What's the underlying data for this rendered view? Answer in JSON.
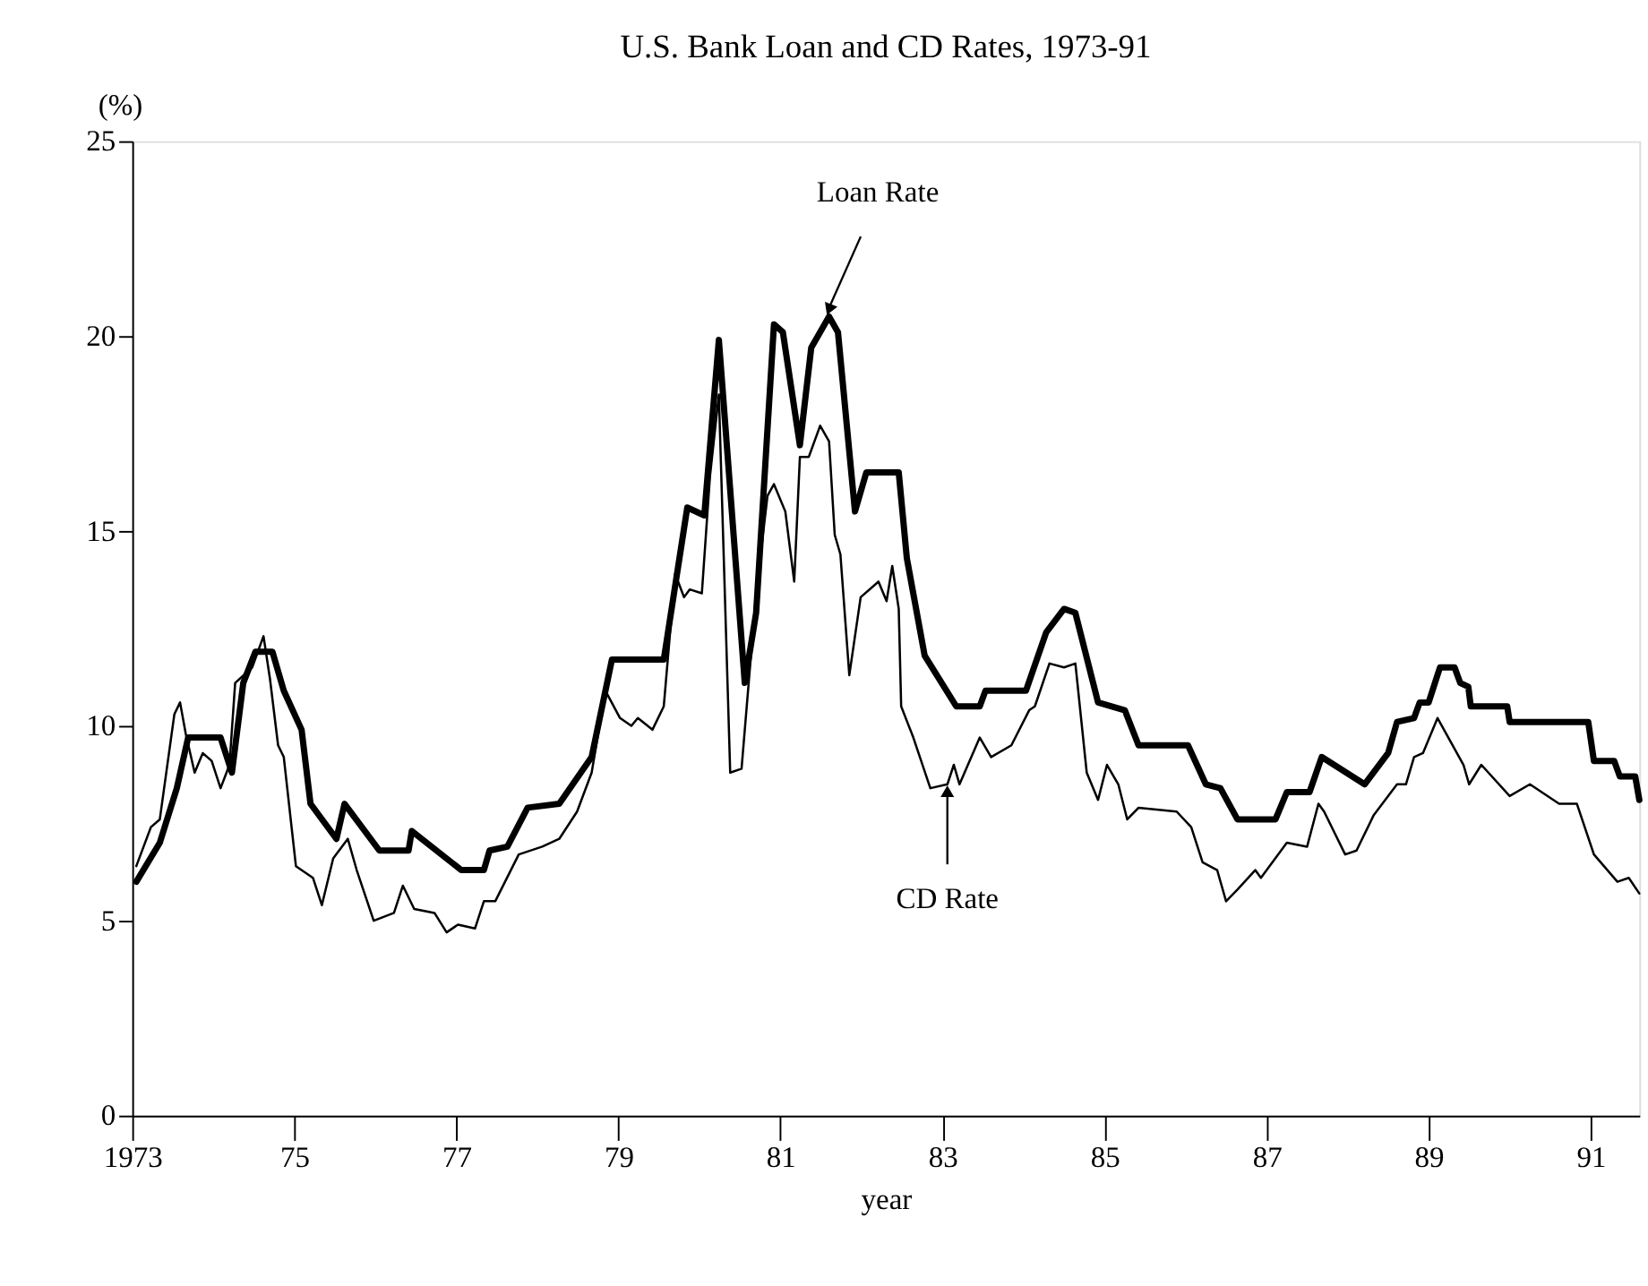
{
  "chart_data": {
    "type": "line",
    "title": "U.S. Bank Loan and CD Rates, 1973-91",
    "xlabel": "year",
    "ylabel": "(%)",
    "x": [
      1973.05,
      1973.34,
      1973.55,
      1973.69,
      1974.09,
      1974.23,
      1974.37,
      1974.52,
      1974.73,
      1974.87,
      1975.09,
      1975.2,
      1975.52,
      1975.62,
      1976.05,
      1976.41,
      1976.45,
      1977.06,
      1977.34,
      1977.41,
      1977.63,
      1977.88,
      1978.27,
      1978.67,
      1978.92,
      1979.56,
      1979.85,
      1980.06,
      1980.24,
      1980.56,
      1980.7,
      1980.92,
      1981.03,
      1981.24,
      1981.38,
      1981.6,
      1981.71,
      1981.92,
      1982.06,
      1982.46,
      1982.56,
      1982.78,
      1983.17,
      1983.46,
      1983.53,
      1984.03,
      1984.28,
      1984.5,
      1984.64,
      1984.92,
      1985.25,
      1985.42,
      1986.03,
      1986.25,
      1986.43,
      1986.64,
      1987.11,
      1987.25,
      1987.53,
      1987.68,
      1988.21,
      1988.5,
      1988.61,
      1988.82,
      1988.89,
      1989.0,
      1989.14,
      1989.32,
      1989.39,
      1989.49,
      1989.52,
      1989.97,
      1990.0,
      1990.97,
      1991.04,
      1991.29,
      1991.36,
      1991.55,
      1991.6
    ],
    "series": [
      {
        "color": "#000000",
        "values": [
          6.0,
          7.0,
          8.4,
          9.7,
          9.7,
          8.8,
          11.1,
          11.9,
          11.9,
          10.9,
          9.9,
          8.0,
          7.1,
          8.0,
          6.8,
          6.8,
          7.3,
          6.3,
          6.3,
          6.8,
          6.9,
          7.9,
          8.0,
          9.2,
          11.7,
          11.7,
          15.6,
          15.4,
          19.9,
          11.1,
          12.9,
          20.3,
          20.1,
          17.2,
          19.7,
          20.5,
          20.1,
          15.5,
          16.5,
          16.5,
          14.3,
          11.8,
          10.5,
          10.5,
          10.9,
          10.9,
          12.4,
          13.0,
          12.9,
          10.6,
          10.4,
          9.5,
          9.5,
          8.5,
          8.4,
          7.6,
          7.6,
          8.3,
          8.3,
          9.2,
          8.5,
          9.3,
          10.1,
          10.2,
          10.6,
          10.6,
          11.5,
          11.5,
          11.1,
          11.0,
          10.5,
          10.5,
          10.1,
          10.1,
          9.1,
          9.1,
          8.7,
          8.7,
          8.1
        ]
      },
      {
        "color": "#000000",
        "x": [
          1973.05,
          1973.23,
          1973.34,
          1973.52,
          1973.59,
          1973.66,
          1973.77,
          1973.87,
          1973.98,
          1974.09,
          1974.2,
          1974.27,
          1974.48,
          1974.62,
          1974.7,
          1974.8,
          1974.87,
          1975.02,
          1975.23,
          1975.34,
          1975.48,
          1975.66,
          1975.77,
          1975.98,
          1976.23,
          1976.34,
          1976.48,
          1976.73,
          1976.88,
          1977.02,
          1977.23,
          1977.34,
          1977.48,
          1977.77,
          1978.06,
          1978.27,
          1978.49,
          1978.67,
          1978.84,
          1979.02,
          1979.16,
          1979.24,
          1979.42,
          1979.56,
          1979.7,
          1979.81,
          1979.88,
          1980.03,
          1980.13,
          1980.24,
          1980.38,
          1980.52,
          1980.7,
          1980.84,
          1980.92,
          1981.06,
          1981.17,
          1981.24,
          1981.35,
          1981.49,
          1981.6,
          1981.67,
          1981.74,
          1981.85,
          1981.99,
          1982.21,
          1982.31,
          1982.38,
          1982.46,
          1982.49,
          1982.64,
          1982.85,
          1983.06,
          1983.14,
          1983.21,
          1983.46,
          1983.6,
          1983.85,
          1984.07,
          1984.14,
          1984.32,
          1984.5,
          1984.64,
          1984.78,
          1984.92,
          1985.03,
          1985.17,
          1985.28,
          1985.42,
          1985.89,
          1986.07,
          1986.21,
          1986.39,
          1986.5,
          1986.64,
          1986.86,
          1986.93,
          1987.25,
          1987.5,
          1987.64,
          1987.71,
          1987.97,
          1988.11,
          1988.32,
          1988.61,
          1988.72,
          1988.82,
          1988.93,
          1989.11,
          1989.43,
          1989.5,
          1989.65,
          1990.0,
          1990.25,
          1990.61,
          1990.83,
          1991.04,
          1991.33,
          1991.47,
          1991.6
        ],
        "values": [
          6.4,
          7.4,
          7.6,
          10.3,
          10.6,
          9.8,
          8.8,
          9.3,
          9.1,
          8.4,
          9.0,
          11.1,
          11.5,
          12.3,
          11.2,
          9.5,
          9.2,
          6.4,
          6.1,
          5.4,
          6.6,
          7.1,
          6.3,
          5.0,
          5.2,
          5.9,
          5.3,
          5.2,
          4.7,
          4.9,
          4.8,
          5.5,
          5.5,
          6.7,
          6.9,
          7.1,
          7.8,
          8.8,
          10.9,
          10.2,
          10.0,
          10.2,
          9.9,
          10.5,
          13.9,
          13.3,
          13.5,
          13.4,
          16.4,
          18.5,
          8.8,
          8.9,
          13.4,
          15.9,
          16.2,
          15.5,
          13.7,
          16.9,
          16.9,
          17.7,
          17.3,
          14.9,
          14.4,
          11.3,
          13.3,
          13.7,
          13.2,
          14.1,
          13.0,
          10.5,
          9.7,
          8.4,
          8.5,
          9.0,
          8.5,
          9.7,
          9.2,
          9.5,
          10.4,
          10.5,
          11.6,
          11.5,
          11.6,
          8.8,
          8.1,
          9.0,
          8.5,
          7.6,
          7.9,
          7.8,
          7.4,
          6.5,
          6.3,
          5.5,
          5.8,
          6.3,
          6.1,
          7.0,
          6.9,
          8.0,
          7.8,
          6.7,
          6.8,
          7.7,
          8.5,
          8.5,
          9.2,
          9.3,
          10.2,
          9.0,
          8.5,
          9.0,
          8.2,
          8.5,
          8.0,
          8.0,
          6.7,
          6.0,
          6.1,
          5.7
        ]
      }
    ],
    "xlim": [
      1973,
      1991.6
    ],
    "ylim": [
      0,
      25
    ],
    "xticks": [
      {
        "value": 1973,
        "label": "1973"
      },
      {
        "value": 1975,
        "label": "75"
      },
      {
        "value": 1977,
        "label": "77"
      },
      {
        "value": 1979,
        "label": "79"
      },
      {
        "value": 1981,
        "label": "81"
      },
      {
        "value": 1983,
        "label": "83"
      },
      {
        "value": 1985,
        "label": "85"
      },
      {
        "value": 1987,
        "label": "87"
      },
      {
        "value": 1989,
        "label": "89"
      },
      {
        "value": 1991,
        "label": "91"
      }
    ],
    "yticks": [
      0,
      5,
      10,
      15,
      20,
      25
    ],
    "annotations": [
      {
        "text": "Loan Rate",
        "x": 1981.6,
        "y": 20.5
      },
      {
        "text": "CD Rate",
        "x": 1983.06,
        "y": 8.5
      }
    ],
    "grid": false,
    "marker": "none",
    "line_style": "solid"
  }
}
